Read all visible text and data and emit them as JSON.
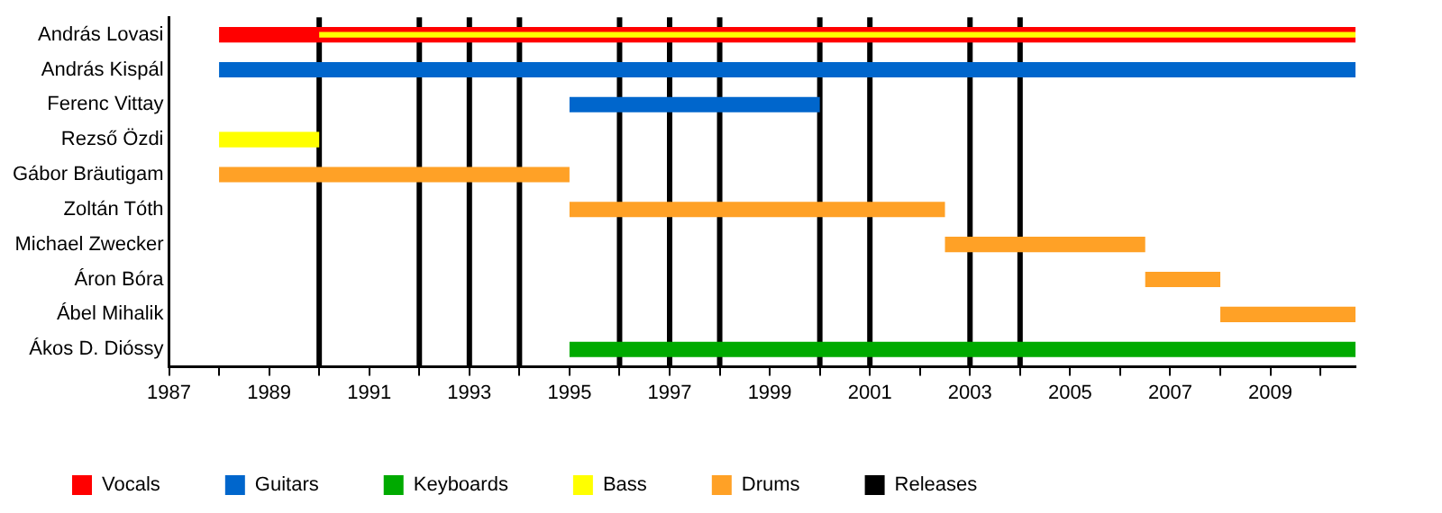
{
  "chart_data": {
    "type": "bar",
    "orientation": "horizontal",
    "categories": [
      "András Lovasi",
      "András Kispál",
      "Ferenc Vittay",
      "Rezső Özdi",
      "Gábor Bräutigam",
      "Zoltán Tóth",
      "Michael Zwecker",
      "Áron Bóra",
      "Ábel Mihalik",
      "Ákos D. Dióssy"
    ],
    "series": [
      {
        "name": "Vocals",
        "color": "#ff0000",
        "base": [
          1988,
          null,
          null,
          null,
          null,
          null,
          null,
          null,
          null,
          null
        ],
        "values": [
          22.7,
          null,
          null,
          null,
          null,
          null,
          null,
          null,
          null,
          null
        ]
      },
      {
        "name": "Guitars",
        "color": "#0066cc",
        "base": [
          null,
          1988,
          1995,
          null,
          null,
          null,
          null,
          null,
          null,
          null
        ],
        "values": [
          null,
          22.7,
          5,
          null,
          null,
          null,
          null,
          null,
          null,
          null
        ]
      },
      {
        "name": "Keyboards",
        "color": "#00aa00",
        "base": [
          null,
          null,
          null,
          null,
          null,
          null,
          null,
          null,
          null,
          1995
        ],
        "values": [
          null,
          null,
          null,
          null,
          null,
          null,
          null,
          null,
          null,
          15.7
        ]
      },
      {
        "name": "Bass",
        "color": "#ffff00",
        "base": [
          1990,
          null,
          null,
          1988,
          null,
          null,
          null,
          null,
          null,
          null
        ],
        "values": [
          20.7,
          null,
          null,
          2,
          null,
          null,
          null,
          null,
          null,
          null
        ]
      },
      {
        "name": "Drums",
        "color": "#ffa126",
        "base": [
          null,
          null,
          null,
          null,
          1988,
          1995,
          2002.5,
          2006.5,
          2008,
          null
        ],
        "values": [
          null,
          null,
          null,
          null,
          7,
          7.5,
          4,
          1.5,
          2.7,
          null
        ]
      }
    ],
    "xlim": [
      1987,
      2010.7
    ],
    "xticks": [
      1987,
      {
        "value": 1988,
        "label": null
      },
      1989,
      {
        "value": 1990,
        "label": null
      },
      1991,
      {
        "value": 1992,
        "label": null
      },
      1993,
      {
        "value": 1994,
        "label": null
      },
      1995,
      {
        "value": 1996,
        "label": null
      },
      1997,
      {
        "value": 1998,
        "label": null
      },
      1999,
      {
        "value": 2000,
        "label": null
      },
      2001,
      {
        "value": 2002,
        "label": null
      },
      2003,
      {
        "value": 2004,
        "label": null
      },
      2005,
      {
        "value": 2006,
        "label": null
      },
      2007,
      {
        "value": 2008,
        "label": null
      },
      2009,
      {
        "value": 2010,
        "label": null
      }
    ],
    "ref_lines": [
      {
        "axis": "x",
        "value": 1990,
        "label": "Releases",
        "color": "#000000"
      },
      {
        "axis": "x",
        "value": 1992,
        "color": "#000000"
      },
      {
        "axis": "x",
        "value": 1993,
        "color": "#000000"
      },
      {
        "axis": "x",
        "value": 1994,
        "color": "#000000"
      },
      {
        "axis": "x",
        "value": 1996,
        "color": "#000000"
      },
      {
        "axis": "x",
        "value": 1997,
        "color": "#000000"
      },
      {
        "axis": "x",
        "value": 1998,
        "color": "#000000"
      },
      {
        "axis": "x",
        "value": 2000,
        "color": "#000000"
      },
      {
        "axis": "x",
        "value": 2001,
        "color": "#000000"
      },
      {
        "axis": "x",
        "value": 2003,
        "color": "#000000"
      },
      {
        "axis": "x",
        "value": 2004,
        "color": "#000000"
      }
    ],
    "legend": "bottom",
    "grid": false
  }
}
